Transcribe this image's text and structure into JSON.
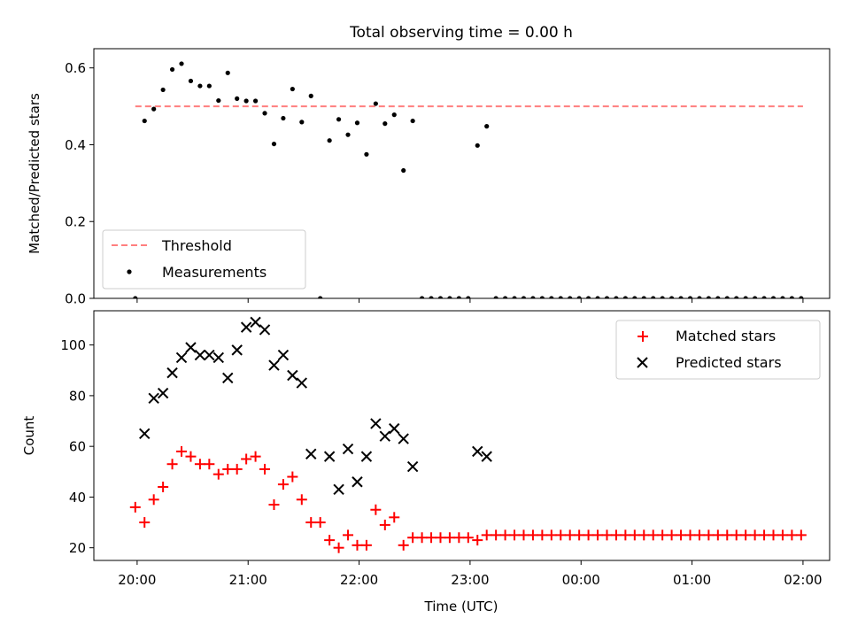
{
  "figure": {
    "title": "Total observing time = 0.00 h",
    "xlabel": "Time (UTC)",
    "x_ticks": [
      "20:00",
      "21:00",
      "22:00",
      "23:00",
      "00:00",
      "01:00",
      "02:00"
    ]
  },
  "chart_data": [
    {
      "type": "scatter",
      "ylabel": "Matched/Predicted stars",
      "ylim": [
        0,
        0.65
      ],
      "y_ticks": [
        "0.0",
        "0.2",
        "0.4",
        "0.6"
      ],
      "xlim_hours": [
        19.61,
        26.24
      ],
      "legend": {
        "placement": "lower-left",
        "entries": [
          "Threshold",
          "Measurements"
        ]
      },
      "threshold": {
        "name": "Threshold",
        "value": 0.5,
        "x_start": "19:59",
        "x_end": "02:00",
        "color": "#ff7f7f",
        "style": "dashed"
      },
      "series": [
        {
          "name": "Measurements",
          "color": "#000000",
          "marker": "dot",
          "x": [
            "19:59",
            "20:04",
            "20:09",
            "20:14",
            "20:19",
            "20:24",
            "20:29",
            "20:34",
            "20:39",
            "20:44",
            "20:49",
            "20:54",
            "20:59",
            "21:04",
            "21:09",
            "21:14",
            "21:19",
            "21:24",
            "21:29",
            "21:34",
            "21:39",
            "21:44",
            "21:49",
            "21:54",
            "21:59",
            "22:04",
            "22:09",
            "22:14",
            "22:19",
            "22:24",
            "22:29",
            "22:34",
            "22:39",
            "22:44",
            "22:49",
            "22:54",
            "22:59",
            "23:04",
            "23:09",
            "23:14",
            "23:19",
            "23:24",
            "23:29",
            "23:34",
            "23:39",
            "23:44",
            "23:49",
            "23:54",
            "23:59",
            "00:04",
            "00:09",
            "00:14",
            "00:19",
            "00:24",
            "00:29",
            "00:34",
            "00:39",
            "00:44",
            "00:49",
            "00:54",
            "00:59",
            "01:04",
            "01:09",
            "01:14",
            "01:19",
            "01:24",
            "01:29",
            "01:34",
            "01:39",
            "01:44",
            "01:49",
            "01:54",
            "01:59"
          ],
          "y": [
            0.0,
            0.462,
            0.493,
            0.543,
            0.596,
            0.611,
            0.566,
            0.553,
            0.553,
            0.515,
            0.587,
            0.52,
            0.514,
            0.514,
            0.482,
            0.402,
            0.469,
            0.545,
            0.459,
            0.527,
            0.0,
            0.411,
            0.466,
            0.426,
            0.457,
            0.375,
            0.507,
            0.455,
            0.478,
            0.333,
            0.462,
            0.0,
            0.0,
            0.0,
            0.0,
            0.0,
            0.0,
            0.398,
            0.448,
            0.0,
            0.0,
            0.0,
            0.0,
            0.0,
            0.0,
            0.0,
            0.0,
            0.0,
            0.0,
            0.0,
            0.0,
            0.0,
            0.0,
            0.0,
            0.0,
            0.0,
            0.0,
            0.0,
            0.0,
            0.0,
            0.0,
            0.0,
            0.0,
            0.0,
            0.0,
            0.0,
            0.0,
            0.0,
            0.0,
            0.0,
            0.0,
            0.0,
            0.0
          ]
        }
      ]
    },
    {
      "type": "scatter",
      "ylabel": "Count",
      "ylim": [
        15,
        113.5
      ],
      "y_ticks": [
        "20",
        "40",
        "60",
        "80",
        "100"
      ],
      "xlim_hours": [
        19.61,
        26.24
      ],
      "legend": {
        "placement": "top-right",
        "entries": [
          "Matched stars",
          "Predicted stars"
        ]
      },
      "series": [
        {
          "name": "Matched stars",
          "color": "#ff0000",
          "marker": "plus",
          "x": [
            "19:59",
            "20:04",
            "20:09",
            "20:14",
            "20:19",
            "20:24",
            "20:29",
            "20:34",
            "20:39",
            "20:44",
            "20:49",
            "20:54",
            "20:59",
            "21:04",
            "21:09",
            "21:14",
            "21:19",
            "21:24",
            "21:29",
            "21:34",
            "21:39",
            "21:44",
            "21:49",
            "21:54",
            "21:59",
            "22:04",
            "22:09",
            "22:14",
            "22:19",
            "22:24",
            "22:29",
            "22:34",
            "22:39",
            "22:44",
            "22:49",
            "22:54",
            "22:59",
            "23:04",
            "23:09",
            "23:14",
            "23:19",
            "23:24",
            "23:29",
            "23:34",
            "23:39",
            "23:44",
            "23:49",
            "23:54",
            "23:59",
            "00:04",
            "00:09",
            "00:14",
            "00:19",
            "00:24",
            "00:29",
            "00:34",
            "00:39",
            "00:44",
            "00:49",
            "00:54",
            "00:59",
            "01:04",
            "01:09",
            "01:14",
            "01:19",
            "01:24",
            "01:29",
            "01:34",
            "01:39",
            "01:44",
            "01:49",
            "01:54",
            "01:59"
          ],
          "y": [
            36,
            30,
            39,
            44,
            53,
            58,
            56,
            53,
            53,
            49,
            51,
            51,
            55,
            56,
            51,
            37,
            45,
            48,
            39,
            30,
            30,
            23,
            20,
            25,
            21,
            21,
            35,
            29,
            32,
            21,
            24,
            24,
            24,
            24,
            24,
            24,
            24,
            23,
            25,
            25,
            25,
            25,
            25,
            25,
            25,
            25,
            25,
            25,
            25,
            25,
            25,
            25,
            25,
            25,
            25,
            25,
            25,
            25,
            25,
            25,
            25,
            25,
            25,
            25,
            25,
            25,
            25,
            25,
            25,
            25,
            25,
            25,
            25
          ]
        },
        {
          "name": "Predicted stars",
          "color": "#000000",
          "marker": "x",
          "x": [
            "20:04",
            "20:09",
            "20:14",
            "20:19",
            "20:24",
            "20:29",
            "20:34",
            "20:39",
            "20:44",
            "20:49",
            "20:54",
            "20:59",
            "21:04",
            "21:09",
            "21:14",
            "21:19",
            "21:24",
            "21:29",
            "21:34",
            "21:44",
            "21:49",
            "21:54",
            "21:59",
            "22:04",
            "22:09",
            "22:14",
            "22:19",
            "22:24",
            "22:29",
            "23:04",
            "23:09"
          ],
          "y": [
            65,
            79,
            81,
            89,
            95,
            99,
            96,
            96,
            95,
            87,
            98,
            107,
            109,
            106,
            92,
            96,
            88,
            85,
            57,
            56,
            43,
            59,
            46,
            56,
            69,
            64,
            67,
            63,
            52,
            58,
            56
          ]
        }
      ]
    }
  ]
}
